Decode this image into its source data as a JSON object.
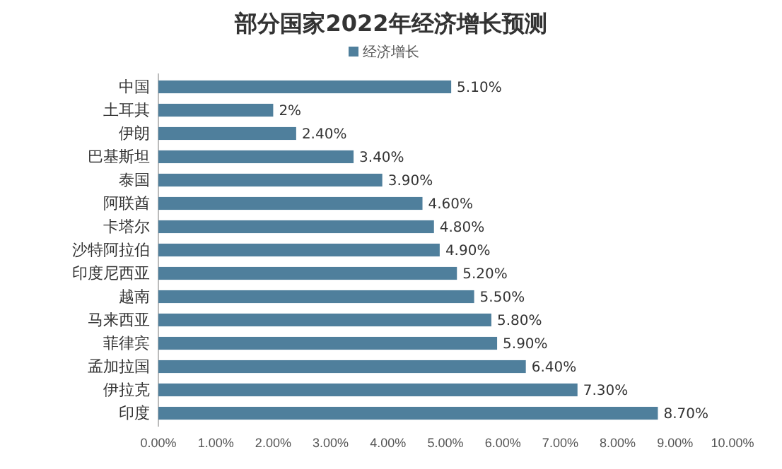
{
  "chart_data": {
    "type": "bar",
    "orientation": "horizontal",
    "title": "部分国家2022年经济增长预测",
    "categories": [
      "中国",
      "土耳其",
      "伊朗",
      "巴基斯坦",
      "泰国",
      "阿联酋",
      "卡塔尔",
      "沙特阿拉伯",
      "印度尼西亚",
      "越南",
      "马来西亚",
      "菲律宾",
      "孟加拉国",
      "伊拉克",
      "印度"
    ],
    "series": [
      {
        "name": "经济增长",
        "color": "#4f7f9c",
        "values": [
          5.1,
          2,
          2.4,
          3.4,
          3.9,
          4.6,
          4.8,
          4.9,
          5.2,
          5.5,
          5.8,
          5.9,
          6.4,
          7.3,
          8.7
        ],
        "value_labels": [
          "5.10%",
          "2%",
          "2.40%",
          "3.40%",
          "3.90%",
          "4.60%",
          "4.80%",
          "4.90%",
          "5.20%",
          "5.50%",
          "5.80%",
          "5.90%",
          "6.40%",
          "7.30%",
          "8.70%"
        ]
      }
    ],
    "xlim": [
      0,
      10
    ],
    "xticks": [
      {
        "value": 0,
        "label": "0.00%"
      },
      {
        "value": 1,
        "label": "1.00%"
      },
      {
        "value": 2,
        "label": "2.00%"
      },
      {
        "value": 3,
        "label": "3.00%"
      },
      {
        "value": 4,
        "label": "4.00%"
      },
      {
        "value": 5,
        "label": "5.00%"
      },
      {
        "value": 6,
        "label": "6.00%"
      },
      {
        "value": 7,
        "label": "7.00%"
      },
      {
        "value": 8,
        "label": "8.00%"
      },
      {
        "value": 9,
        "label": "9.00%"
      },
      {
        "value": 10,
        "label": "10.00%"
      }
    ],
    "legend": "top",
    "grid": false
  }
}
